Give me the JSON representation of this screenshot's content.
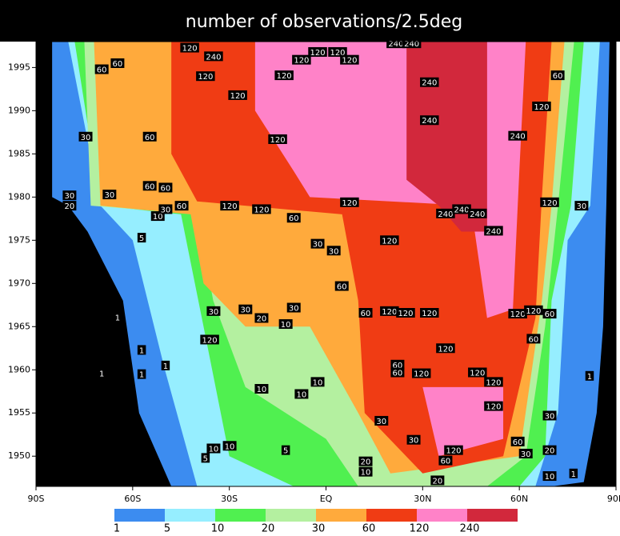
{
  "chart_data": {
    "type": "filled-contour",
    "title": "number of observations/2.5deg",
    "xlim": [
      -90,
      90
    ],
    "xticks": [
      {
        "value": -90,
        "label": "90S"
      },
      {
        "value": -60,
        "label": "60S"
      },
      {
        "value": -30,
        "label": "30S"
      },
      {
        "value": 0,
        "label": "EQ"
      },
      {
        "value": 30,
        "label": "30N"
      },
      {
        "value": 60,
        "label": "60N"
      },
      {
        "value": 90,
        "label": "90N"
      }
    ],
    "ylim": [
      1946.5,
      1998
    ],
    "yticks": [
      1950,
      1955,
      1960,
      1965,
      1970,
      1975,
      1980,
      1985,
      1990,
      1995
    ],
    "background": "#000000",
    "levels": [
      1,
      5,
      10,
      20,
      30,
      60,
      120,
      240
    ],
    "colors": [
      "#3c8cf0",
      "#96eeff",
      "#50f050",
      "#b4f0a0",
      "#ffaa3c",
      "#f03c14",
      "#ff82c8",
      "#d2283c"
    ],
    "regions": [
      {
        "level": 0,
        "lat": [
          -85,
          88,
          87,
          86,
          84,
          80,
          70,
          -48,
          -58,
          -63,
          -74,
          -80,
          -85
        ],
        "year": [
          1998,
          1998,
          1979,
          1965,
          1955,
          1947,
          1946.5,
          1946.5,
          1955,
          1968,
          1976,
          1979,
          1980
        ]
      },
      {
        "level": 1,
        "lat": [
          -80,
          85,
          82,
          75,
          72,
          65,
          -40,
          -50,
          -60,
          -70
        ],
        "year": [
          1998,
          1998,
          1979,
          1975,
          1955,
          1946.5,
          1946.5,
          1960,
          1975,
          1979
        ]
      },
      {
        "level": 2,
        "lat": [
          -78,
          80,
          76,
          70,
          68,
          60,
          -10,
          -30,
          -38,
          -45,
          -70
        ],
        "year": [
          1998,
          1998,
          1979,
          1968,
          1950,
          1946.5,
          1946.5,
          1950,
          1965,
          1978,
          1979
        ]
      },
      {
        "level": 3,
        "lat": [
          -75,
          77,
          72,
          68,
          62,
          50,
          10,
          0,
          -25,
          -35,
          -40,
          -73
        ],
        "year": [
          1998,
          1998,
          1979,
          1965,
          1950,
          1946.5,
          1946.5,
          1952,
          1958,
          1968,
          1978,
          1979
        ]
      },
      {
        "level": 4,
        "lat": [
          -72,
          74,
          70,
          67,
          60,
          20,
          10,
          -5,
          -25,
          -38,
          -42,
          -70
        ],
        "year": [
          1998,
          1998,
          1979,
          1968,
          1950,
          1948,
          1955,
          1965,
          1965,
          1970,
          1978,
          1979
        ]
      },
      {
        "level": 5,
        "lat": [
          -48,
          70,
          67,
          65,
          55,
          30,
          12,
          10,
          5,
          -40,
          -48
        ],
        "year": [
          1998,
          1998,
          1980,
          1966,
          1950,
          1948,
          1955,
          1968,
          1978,
          1979.5,
          1985
        ]
      },
      {
        "level": 6,
        "lat": [
          -22,
          62,
          60,
          58,
          50,
          45,
          -5,
          -10,
          -22
        ],
        "year": [
          1998,
          1998,
          1983,
          1967,
          1966,
          1979,
          1980,
          1983,
          1990
        ]
      },
      {
        "level": 6,
        "lat": [
          30,
          55,
          55,
          35
        ],
        "year": [
          1958,
          1958,
          1952,
          1950
        ]
      },
      {
        "level": 7,
        "lat": [
          25,
          50,
          50,
          42,
          35,
          25
        ],
        "year": [
          1998,
          1998,
          1976,
          1976,
          1979,
          1982
        ]
      }
    ],
    "contour_labels": [
      {
        "label": 120,
        "lat": -42.3,
        "year": 1997.3
      },
      {
        "label": 240,
        "lat": -34.9,
        "year": 1996.3
      },
      {
        "label": 60,
        "lat": -69.6,
        "year": 1994.8
      },
      {
        "label": 60,
        "lat": -64.7,
        "year": 1995.5
      },
      {
        "label": 120,
        "lat": -7.6,
        "year": 1995.9
      },
      {
        "label": 120,
        "lat": -2.6,
        "year": 1996.8
      },
      {
        "label": 120,
        "lat": 3.6,
        "year": 1996.8
      },
      {
        "label": 120,
        "lat": 7.3,
        "year": 1995.9
      },
      {
        "label": 120,
        "lat": -13.0,
        "year": 1994.1
      },
      {
        "label": 120,
        "lat": -37.4,
        "year": 1994.0
      },
      {
        "label": 120,
        "lat": -27.4,
        "year": 1991.8
      },
      {
        "label": 240,
        "lat": 21.7,
        "year": 1997.8
      },
      {
        "label": 240,
        "lat": 26.6,
        "year": 1997.8
      },
      {
        "label": 240,
        "lat": 32.1,
        "year": 1993.3
      },
      {
        "label": 240,
        "lat": 32.1,
        "year": 1988.9
      },
      {
        "label": 120,
        "lat": 66.9,
        "year": 1990.5
      },
      {
        "label": 60,
        "lat": 71.9,
        "year": 1994.1
      },
      {
        "label": 240,
        "lat": 59.5,
        "year": 1987.1
      },
      {
        "label": 120,
        "lat": -15.0,
        "year": 1986.7
      },
      {
        "label": 30,
        "lat": -74.6,
        "year": 1987.0
      },
      {
        "label": 60,
        "lat": -54.7,
        "year": 1987.0
      },
      {
        "label": 60,
        "lat": -54.7,
        "year": 1981.3
      },
      {
        "label": 60,
        "lat": -49.8,
        "year": 1981.1
      },
      {
        "label": 30,
        "lat": -67.2,
        "year": 1980.3
      },
      {
        "label": 30,
        "lat": -79.6,
        "year": 1980.2
      },
      {
        "label": 20,
        "lat": -79.6,
        "year": 1979.0
      },
      {
        "label": 10,
        "lat": -52.2,
        "year": 1977.8
      },
      {
        "label": 30,
        "lat": -49.8,
        "year": 1978.6
      },
      {
        "label": 60,
        "lat": -44.8,
        "year": 1979.0
      },
      {
        "label": 120,
        "lat": 7.3,
        "year": 1979.4
      },
      {
        "label": 120,
        "lat": 69.4,
        "year": 1979.4
      },
      {
        "label": 30,
        "lat": 79.3,
        "year": 1979.0
      },
      {
        "label": 240,
        "lat": 37.1,
        "year": 1978.1
      },
      {
        "label": 240,
        "lat": 42.1,
        "year": 1978.6
      },
      {
        "label": 240,
        "lat": 47.0,
        "year": 1978.1
      },
      {
        "label": 240,
        "lat": 52.0,
        "year": 1976.1
      },
      {
        "label": 120,
        "lat": -29.9,
        "year": 1979.0
      },
      {
        "label": 120,
        "lat": -20.0,
        "year": 1978.6
      },
      {
        "label": 60,
        "lat": -10.0,
        "year": 1977.6
      },
      {
        "label": 120,
        "lat": 19.7,
        "year": 1975.0
      },
      {
        "label": 30,
        "lat": -2.6,
        "year": 1974.6
      },
      {
        "label": 30,
        "lat": 2.4,
        "year": 1973.8
      },
      {
        "label": 5,
        "lat": -57.2,
        "year": 1975.3
      },
      {
        "label": 60,
        "lat": 4.9,
        "year": 1969.7
      },
      {
        "label": 60,
        "lat": 12.3,
        "year": 1966.6
      },
      {
        "label": 120,
        "lat": 19.7,
        "year": 1966.8
      },
      {
        "label": 120,
        "lat": 24.7,
        "year": 1966.6
      },
      {
        "label": 120,
        "lat": 32.1,
        "year": 1966.6
      },
      {
        "label": 120,
        "lat": 59.5,
        "year": 1966.5
      },
      {
        "label": 120,
        "lat": 64.4,
        "year": 1966.9
      },
      {
        "label": 60,
        "lat": 69.4,
        "year": 1966.5
      },
      {
        "label": 30,
        "lat": -34.9,
        "year": 1966.8
      },
      {
        "label": 30,
        "lat": -25.0,
        "year": 1967.0
      },
      {
        "label": 20,
        "lat": -20.0,
        "year": 1966.0
      },
      {
        "label": 30,
        "lat": -10.0,
        "year": 1967.2
      },
      {
        "label": 10,
        "lat": -12.5,
        "year": 1965.3
      },
      {
        "label": 120,
        "lat": -36.1,
        "year": 1963.5
      },
      {
        "label": 60,
        "lat": 64.4,
        "year": 1963.6
      },
      {
        "label": 120,
        "lat": 37.1,
        "year": 1962.5
      },
      {
        "label": 60,
        "lat": 22.2,
        "year": 1960.6
      },
      {
        "label": 60,
        "lat": 22.2,
        "year": 1959.7
      },
      {
        "label": 120,
        "lat": 29.6,
        "year": 1959.6
      },
      {
        "label": 120,
        "lat": 47.0,
        "year": 1959.7
      },
      {
        "label": 120,
        "lat": 52.0,
        "year": 1958.6
      },
      {
        "label": 120,
        "lat": 52.0,
        "year": 1955.8
      },
      {
        "label": 10,
        "lat": -20.0,
        "year": 1957.8
      },
      {
        "label": 10,
        "lat": -2.6,
        "year": 1958.6
      },
      {
        "label": 10,
        "lat": -7.6,
        "year": 1957.2
      },
      {
        "label": 30,
        "lat": 17.2,
        "year": 1954.1
      },
      {
        "label": 30,
        "lat": 69.4,
        "year": 1954.7
      },
      {
        "label": 30,
        "lat": 27.2,
        "year": 1951.9
      },
      {
        "label": 60,
        "lat": 59.5,
        "year": 1951.7
      },
      {
        "label": 30,
        "lat": 62.0,
        "year": 1950.3
      },
      {
        "label": 20,
        "lat": 69.4,
        "year": 1950.7
      },
      {
        "label": 120,
        "lat": 39.6,
        "year": 1950.7
      },
      {
        "label": 60,
        "lat": 37.1,
        "year": 1949.5
      },
      {
        "label": 10,
        "lat": -34.9,
        "year": 1950.9
      },
      {
        "label": 10,
        "lat": -29.9,
        "year": 1951.2
      },
      {
        "label": 5,
        "lat": -37.4,
        "year": 1949.8
      },
      {
        "label": 5,
        "lat": -12.5,
        "year": 1950.7
      },
      {
        "label": 20,
        "lat": 12.3,
        "year": 1949.4
      },
      {
        "label": 10,
        "lat": 12.3,
        "year": 1948.2
      },
      {
        "label": 20,
        "lat": 34.6,
        "year": 1947.2
      },
      {
        "label": 10,
        "lat": 69.4,
        "year": 1947.7
      },
      {
        "label": 1,
        "lat": 76.8,
        "year": 1948.0
      },
      {
        "label": 1,
        "lat": -64.7,
        "year": 1966.1
      },
      {
        "label": 1,
        "lat": -57.2,
        "year": 1962.3
      },
      {
        "label": 1,
        "lat": -69.6,
        "year": 1959.6
      },
      {
        "label": 1,
        "lat": -57.2,
        "year": 1959.5
      },
      {
        "label": 1,
        "lat": -49.8,
        "year": 1960.5
      },
      {
        "label": 1,
        "lat": 81.8,
        "year": 1959.3
      }
    ]
  }
}
